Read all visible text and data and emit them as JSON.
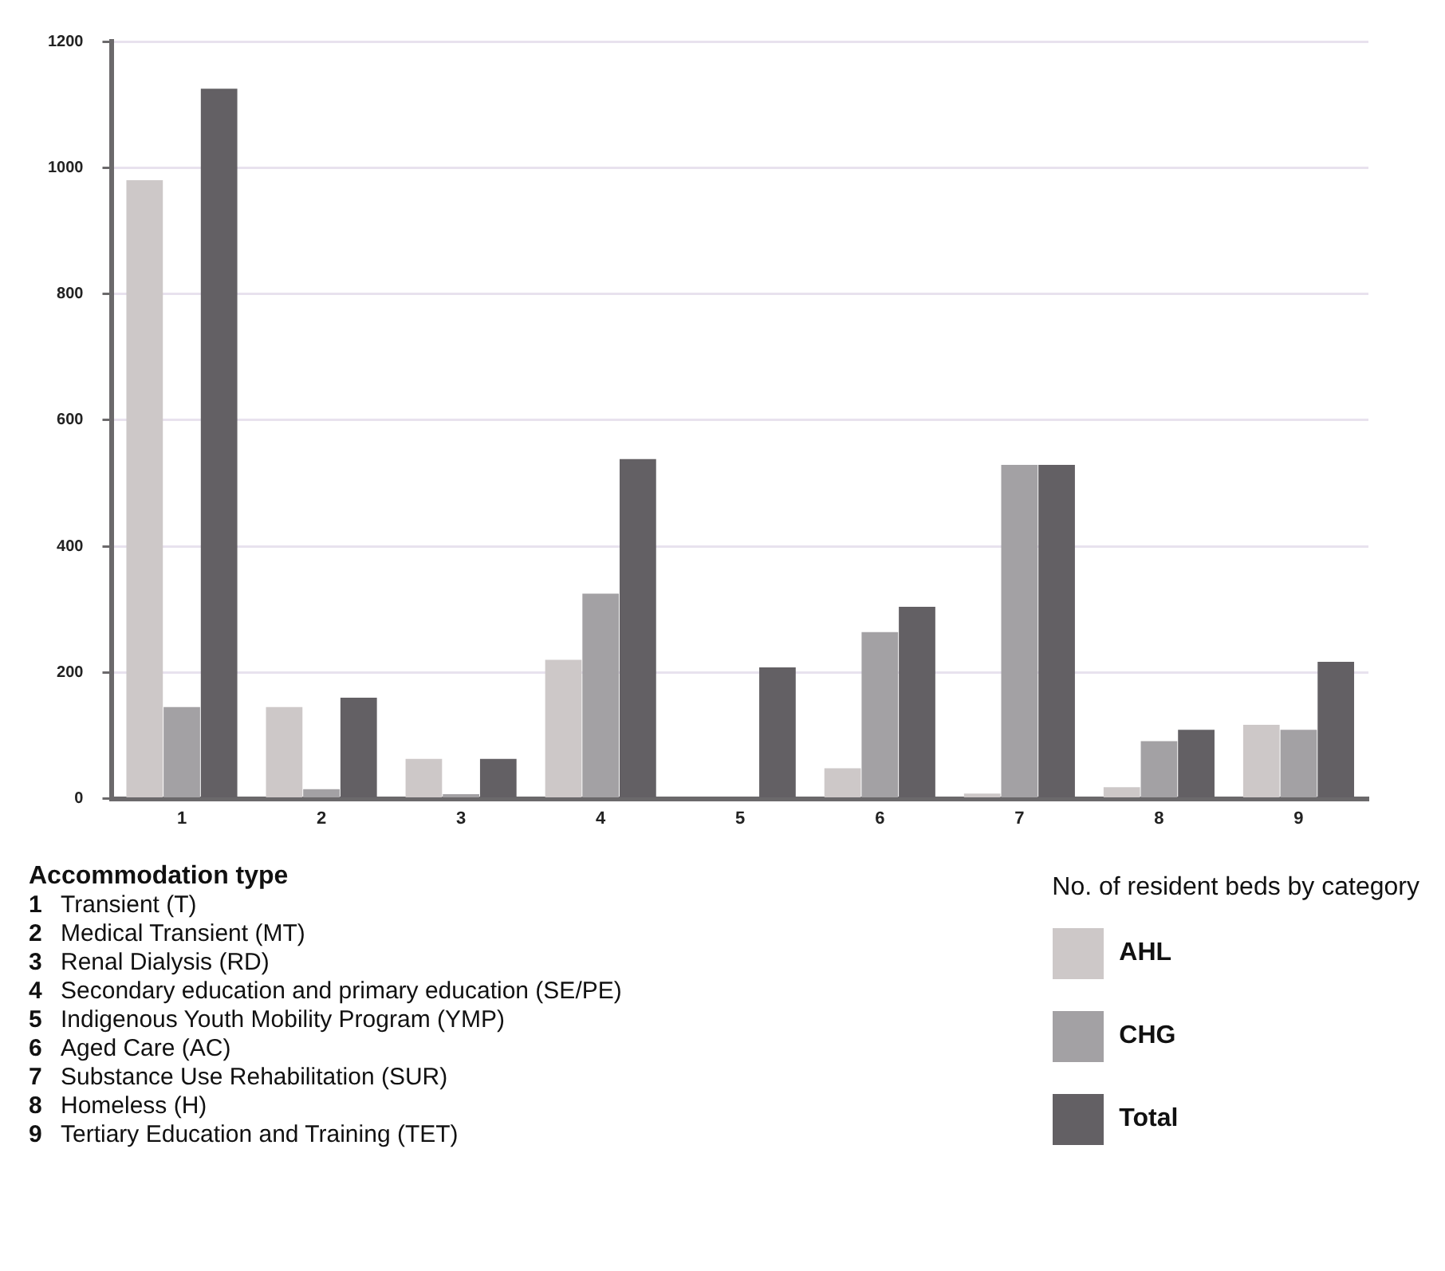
{
  "chart_data": {
    "type": "bar",
    "categories": [
      "1",
      "2",
      "3",
      "4",
      "5",
      "6",
      "7",
      "8",
      "9"
    ],
    "series": [
      {
        "name": "AHL",
        "color": "#cdc8c8",
        "values": [
          980,
          145,
          63,
          220,
          0,
          48,
          8,
          18,
          117
        ]
      },
      {
        "name": "CHG",
        "color": "#a3a1a4",
        "values": [
          145,
          15,
          7,
          325,
          0,
          264,
          529,
          91,
          109
        ]
      },
      {
        "name": "Total",
        "color": "#636064",
        "values": [
          1125,
          160,
          63,
          538,
          208,
          304,
          529,
          109,
          217
        ]
      }
    ],
    "ylim": [
      0,
      1200
    ],
    "yticks": [
      0,
      200,
      400,
      600,
      800,
      1000,
      1200
    ],
    "grid": "y",
    "legend": "bottom right",
    "legend_title": "No. of resident beds by category",
    "annotations": [
      "Accommodation type",
      "1 Transient (T)",
      "2 Medical Transient (MT)",
      "3 Renal Dialysis (RD)",
      "4 Secondary education and primary education (SE/PE)",
      "5 Indigenous Youth Mobility Program (YMP)",
      "6 Aged Care (AC)",
      "7 Substance Use Rehabilitation (SUR)",
      "8 Homeless (H)",
      "9 Tertiary Education and Training (TET)"
    ]
  }
}
